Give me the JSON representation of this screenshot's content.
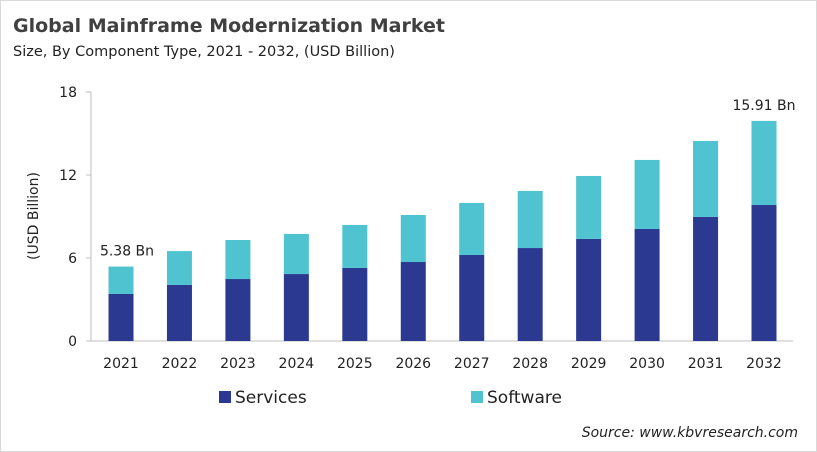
{
  "title": "Global Mainframe Modernization Market",
  "subtitle": "Size, By Component Type, 2021 - 2032, (USD Billion)",
  "source": "Source: www.kbvresearch.com",
  "chart_data": {
    "type": "bar",
    "stacked": true,
    "categories": [
      "2021",
      "2022",
      "2023",
      "2024",
      "2025",
      "2026",
      "2027",
      "2028",
      "2029",
      "2030",
      "2031",
      "2032"
    ],
    "series": [
      {
        "name": "Services",
        "color": "#2b3990",
        "values": [
          3.4,
          4.05,
          4.48,
          4.84,
          5.28,
          5.71,
          6.22,
          6.72,
          7.38,
          8.1,
          8.97,
          9.83
        ]
      },
      {
        "name": "Software",
        "color": "#4fc3cf",
        "values": [
          1.98,
          2.45,
          2.82,
          2.9,
          3.11,
          3.4,
          3.76,
          4.13,
          4.55,
          4.99,
          5.49,
          6.08
        ]
      }
    ],
    "ylabel": "(USD Billion)",
    "ylim": [
      0,
      18
    ],
    "yticks": [
      "0",
      "6",
      "12",
      "18"
    ],
    "grid": false,
    "legend": "bottom",
    "annotations": [
      {
        "category": "2021",
        "text": "5.38 Bn"
      },
      {
        "category": "2032",
        "text": "15.91 Bn"
      }
    ]
  }
}
